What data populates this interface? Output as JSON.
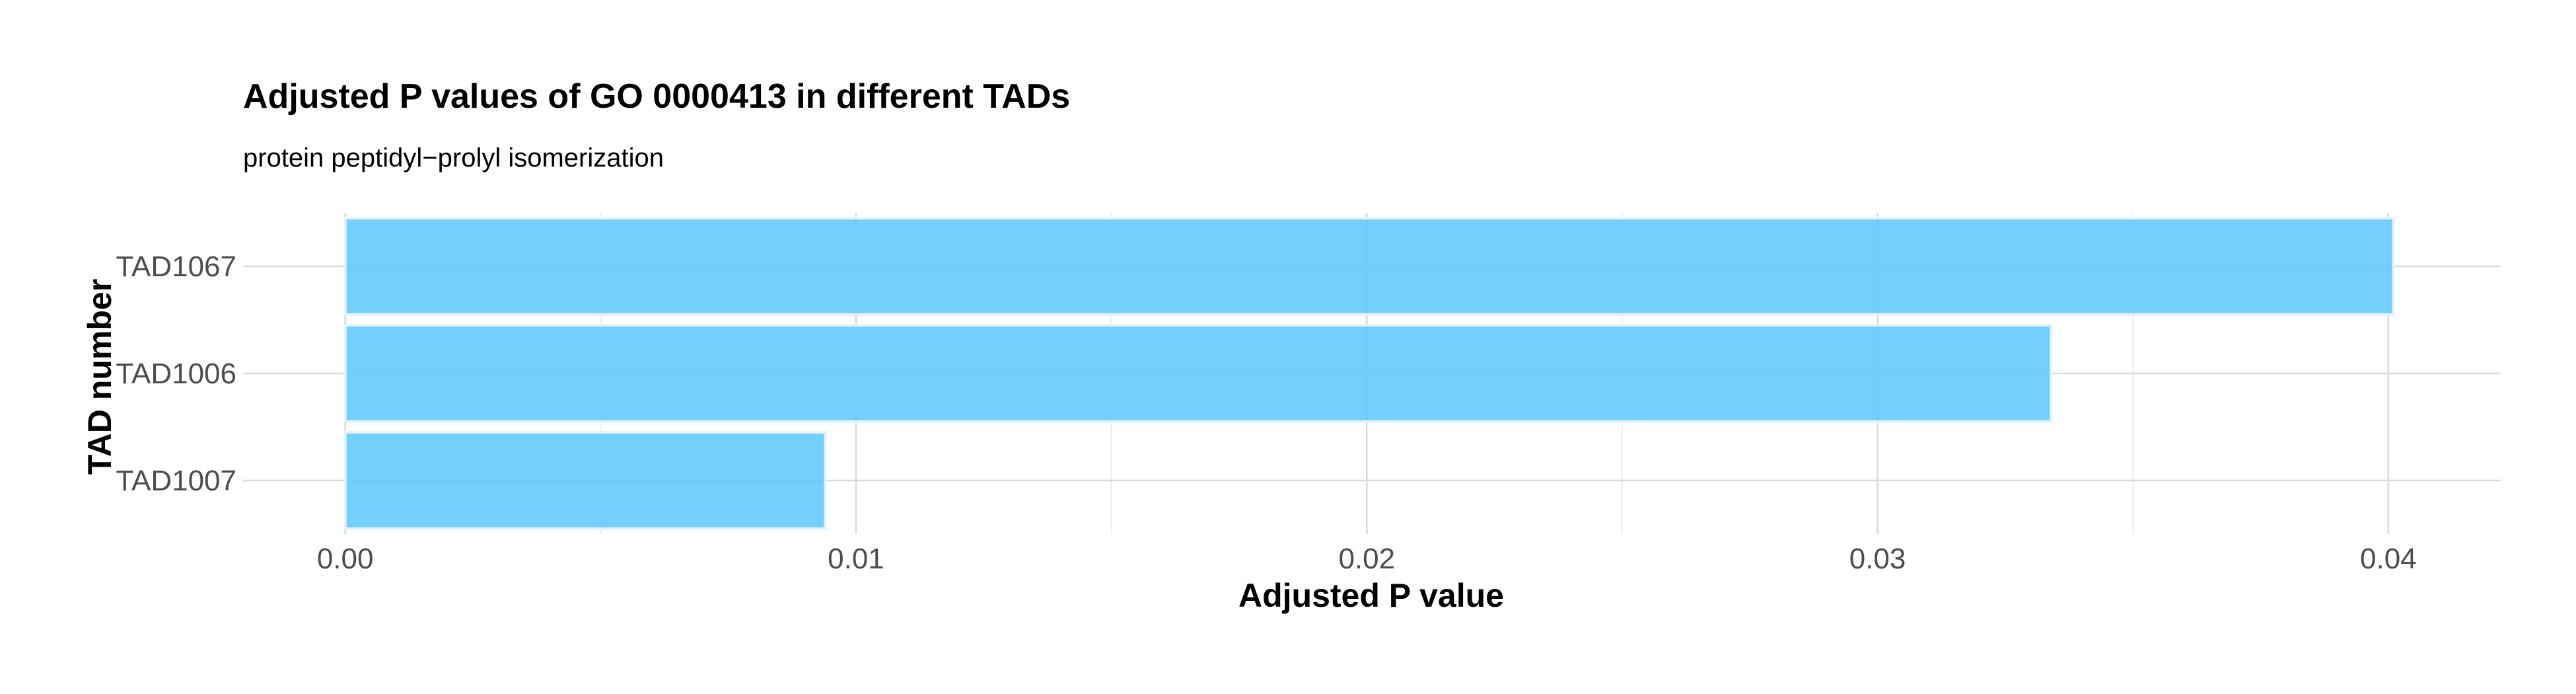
{
  "chart_data": {
    "type": "bar",
    "orientation": "horizontal",
    "title": "Adjusted P values of GO 0000413 in different TADs",
    "subtitle": "protein peptidyl−prolyl isomerization",
    "xlabel": "Adjusted P value",
    "ylabel": "TAD number",
    "categories": [
      "TAD1067",
      "TAD1006",
      "TAD1007"
    ],
    "values": [
      0.0401,
      0.0334,
      0.0094
    ],
    "xlim": [
      -0.002,
      0.0422
    ],
    "xticks": [
      0.0,
      0.01,
      0.02,
      0.03,
      0.04
    ],
    "xtick_labels": [
      "0.00",
      "0.01",
      "0.02",
      "0.03",
      "0.04"
    ],
    "bar_color": "#5bc8fb",
    "grid": true,
    "legend": "none"
  }
}
